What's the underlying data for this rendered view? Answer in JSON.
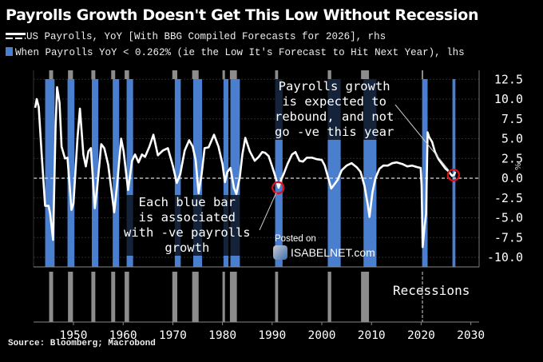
{
  "header": {
    "title": "Payrolls Growth Doesn't Get This Low Without Recession",
    "legend": [
      {
        "icon": "line-dashed-icon",
        "label": "US Payrolls, YoY [With BBG Compiled Forecasts for 2026], rhs"
      },
      {
        "icon": "blue-box-icon",
        "label": "When Payrolls YoY < 0.262% (ie the Low It's Forecast to Hit Next Year), lhs"
      }
    ]
  },
  "annotations": {
    "left": [
      "Each blue bar",
      "is associated",
      "with -ve payrolls",
      "growth"
    ],
    "right": [
      "Payrolls growth",
      "is expected to",
      "rebound, and not",
      "go -ve this year"
    ],
    "recessions_label": "Recessions",
    "axis_unit": "%"
  },
  "watermark": {
    "posted": "Posted on",
    "site": "ISABELNET.com"
  },
  "source": "Source: Bloomberg; Macrobond",
  "colors": {
    "bar": "#4a7fd0",
    "recession": "#8c8c8c",
    "line": "#ffffff",
    "highlight": "#e0101a",
    "background": "#000000"
  },
  "chart_data": {
    "type": "line",
    "title": "Payrolls Growth Doesn't Get This Low Without Recession",
    "xlabel": "",
    "ylabel": "%",
    "xlim": [
      1942,
      2031
    ],
    "ylim": [
      -10.0,
      12.5
    ],
    "x_ticks": [
      "1950",
      "1960",
      "1970",
      "1980",
      "1990",
      "2000",
      "2010",
      "2020",
      "2030"
    ],
    "y_ticks": [
      "12.5",
      "10.0",
      "7.5",
      "5.0",
      "2.5",
      "0.0",
      "-2.5",
      "-5.0",
      "-7.5",
      "-10.0"
    ],
    "threshold_line": 0.262,
    "series": [
      {
        "name": "US Payrolls, YoY [With BBG Compiled Forecasts for 2026], rhs",
        "type": "line",
        "points": [
          [
            1942.3,
            8.9
          ],
          [
            1942.6,
            10.0
          ],
          [
            1943.0,
            9.0
          ],
          [
            1943.6,
            3.0
          ],
          [
            1944.3,
            -3.5
          ],
          [
            1945.0,
            -3.5
          ],
          [
            1945.3,
            -4.5
          ],
          [
            1945.9,
            -7.8
          ],
          [
            1946.4,
            6.5
          ],
          [
            1946.7,
            11.5
          ],
          [
            1947.2,
            9.5
          ],
          [
            1947.6,
            4.0
          ],
          [
            1948.3,
            2.5
          ],
          [
            1948.8,
            2.6
          ],
          [
            1949.6,
            -4.0
          ],
          [
            1950.0,
            -3.2
          ],
          [
            1950.8,
            5.0
          ],
          [
            1951.3,
            8.8
          ],
          [
            1952.0,
            3.0
          ],
          [
            1952.5,
            1.5
          ],
          [
            1953.0,
            3.4
          ],
          [
            1953.5,
            3.8
          ],
          [
            1954.3,
            -3.8
          ],
          [
            1954.8,
            -1.0
          ],
          [
            1955.6,
            4.3
          ],
          [
            1956.2,
            3.8
          ],
          [
            1957.0,
            1.7
          ],
          [
            1958.2,
            -4.3
          ],
          [
            1958.8,
            -0.8
          ],
          [
            1959.6,
            5.0
          ],
          [
            1960.1,
            3.4
          ],
          [
            1961.0,
            -1.5
          ],
          [
            1961.8,
            2.2
          ],
          [
            1962.4,
            3.0
          ],
          [
            1963.1,
            2.0
          ],
          [
            1963.8,
            3.0
          ],
          [
            1964.4,
            2.7
          ],
          [
            1965.3,
            4.0
          ],
          [
            1966.1,
            5.5
          ],
          [
            1967.0,
            2.9
          ],
          [
            1968.0,
            3.5
          ],
          [
            1969.0,
            3.8
          ],
          [
            1970.0,
            1.6
          ],
          [
            1970.8,
            -0.6
          ],
          [
            1971.5,
            0.5
          ],
          [
            1972.4,
            3.5
          ],
          [
            1973.3,
            4.8
          ],
          [
            1974.0,
            4.0
          ],
          [
            1974.6,
            2.3
          ],
          [
            1975.2,
            -1.9
          ],
          [
            1975.8,
            0.5
          ],
          [
            1976.4,
            3.8
          ],
          [
            1977.2,
            3.9
          ],
          [
            1978.3,
            5.5
          ],
          [
            1979.2,
            4.0
          ],
          [
            1980.0,
            1.8
          ],
          [
            1980.5,
            -0.5
          ],
          [
            1981.0,
            0.8
          ],
          [
            1981.6,
            1.3
          ],
          [
            1982.3,
            -1.2
          ],
          [
            1982.8,
            -2.0
          ],
          [
            1983.5,
            0.2
          ],
          [
            1984.0,
            3.0
          ],
          [
            1984.6,
            5.1
          ],
          [
            1985.5,
            3.4
          ],
          [
            1986.5,
            2.2
          ],
          [
            1987.3,
            2.7
          ],
          [
            1988.0,
            3.3
          ],
          [
            1988.6,
            3.2
          ],
          [
            1989.3,
            2.8
          ],
          [
            1990.0,
            1.5
          ],
          [
            1990.6,
            0.3
          ],
          [
            1991.3,
            -1.2
          ],
          [
            1991.8,
            -0.2
          ],
          [
            1992.3,
            0.5
          ],
          [
            1993.1,
            1.8
          ],
          [
            1994.0,
            3.0
          ],
          [
            1994.7,
            3.3
          ],
          [
            1995.5,
            2.2
          ],
          [
            1996.2,
            2.1
          ],
          [
            1997.0,
            2.6
          ],
          [
            1998.0,
            2.6
          ],
          [
            1999.0,
            2.4
          ],
          [
            2000.0,
            2.3
          ],
          [
            2000.6,
            1.6
          ],
          [
            2001.3,
            0.0
          ],
          [
            2001.9,
            -1.3
          ],
          [
            2002.5,
            -0.8
          ],
          [
            2003.2,
            -0.2
          ],
          [
            2004.0,
            1.0
          ],
          [
            2005.0,
            1.6
          ],
          [
            2006.0,
            1.9
          ],
          [
            2007.0,
            1.4
          ],
          [
            2007.8,
            0.8
          ],
          [
            2008.6,
            -1.0
          ],
          [
            2009.3,
            -3.5
          ],
          [
            2009.6,
            -4.9
          ],
          [
            2010.2,
            -1.8
          ],
          [
            2010.8,
            0.0
          ],
          [
            2011.6,
            1.2
          ],
          [
            2012.4,
            1.6
          ],
          [
            2013.3,
            1.6
          ],
          [
            2014.2,
            1.9
          ],
          [
            2015.1,
            2.0
          ],
          [
            2016.2,
            1.8
          ],
          [
            2017.2,
            1.5
          ],
          [
            2018.2,
            1.6
          ],
          [
            2019.2,
            1.4
          ],
          [
            2019.9,
            1.3
          ],
          [
            2020.1,
            -1.0
          ],
          [
            2020.3,
            -8.7
          ],
          [
            2020.7,
            -6.0
          ],
          [
            2021.0,
            -4.5
          ],
          [
            2021.3,
            5.8
          ],
          [
            2021.6,
            5.2
          ],
          [
            2022.2,
            4.6
          ],
          [
            2022.8,
            3.3
          ],
          [
            2023.5,
            2.4
          ],
          [
            2024.2,
            1.8
          ],
          [
            2024.9,
            1.2
          ],
          [
            2025.5,
            0.9
          ],
          [
            2026.2,
            0.3
          ],
          [
            2026.6,
            0.4
          ],
          [
            2026.9,
            0.8
          ]
        ]
      },
      {
        "name": "When Payrolls YoY < 0.262% (ie the Low It's Forecast to Hit Next Year), lhs",
        "type": "bar-intervals",
        "intervals": [
          [
            1944.3,
            1946.2
          ],
          [
            1948.8,
            1950.2
          ],
          [
            1953.7,
            1955.0
          ],
          [
            1957.9,
            1959.2
          ],
          [
            1960.7,
            1962.0
          ],
          [
            1970.4,
            1971.6
          ],
          [
            1974.1,
            1975.9
          ],
          [
            1980.2,
            1981.2
          ],
          [
            1981.6,
            1983.5
          ],
          [
            1990.6,
            1992.1
          ],
          [
            2001.2,
            2003.8
          ],
          [
            2008.4,
            2011.0
          ],
          [
            2020.2,
            2021.3
          ],
          [
            2026.3,
            2026.9
          ]
        ]
      },
      {
        "name": "Recessions",
        "type": "bar-intervals",
        "intervals": [
          [
            1945.1,
            1945.9
          ],
          [
            1948.9,
            1949.9
          ],
          [
            1953.6,
            1954.4
          ],
          [
            1957.6,
            1958.4
          ],
          [
            1960.3,
            1961.2
          ],
          [
            1969.9,
            1970.9
          ],
          [
            1973.9,
            1975.2
          ],
          [
            1980.0,
            1980.5
          ],
          [
            1981.5,
            1982.9
          ],
          [
            1990.6,
            1991.2
          ],
          [
            2001.2,
            2001.9
          ],
          [
            2007.9,
            2009.5
          ],
          [
            2020.1,
            2020.4
          ]
        ]
      }
    ],
    "highlights": [
      {
        "x": 1991.2,
        "y": -1.2,
        "label": "circle"
      },
      {
        "x": 2026.5,
        "y": 0.4,
        "label": "circle"
      }
    ]
  }
}
